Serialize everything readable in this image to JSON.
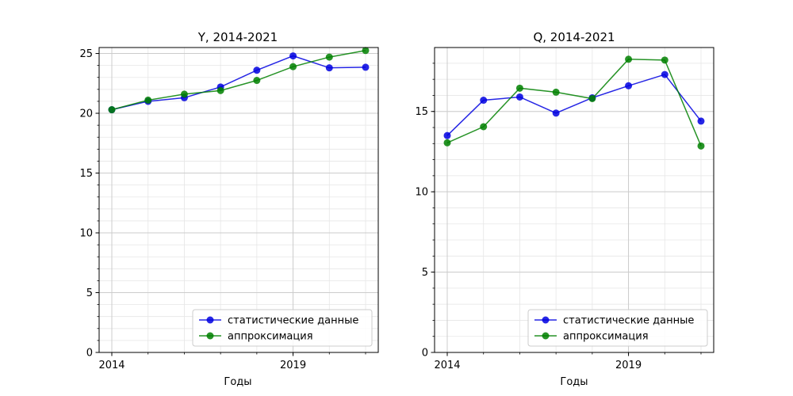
{
  "chart_data": [
    {
      "type": "line",
      "title": "Y, 2014-2021",
      "xlabel": "Годы",
      "ylabel": "",
      "x": [
        2014,
        2015,
        2016,
        2017,
        2018,
        2019,
        2020,
        2021
      ],
      "xlim": [
        2013.65,
        2021.35
      ],
      "ylim": [
        0,
        25.5
      ],
      "xticks": [
        2014,
        2019
      ],
      "yticks": [
        0,
        5,
        10,
        15,
        20,
        25
      ],
      "grid": true,
      "legend_position": "lower-right",
      "series": [
        {
          "name": "статистические данные",
          "color": "#0000e0",
          "values": [
            20.3,
            21.0,
            21.3,
            22.2,
            23.6,
            24.8,
            23.8,
            23.85
          ]
        },
        {
          "name": "аппроксимация",
          "color": "#008000",
          "values": [
            20.3,
            21.1,
            21.6,
            21.9,
            22.75,
            23.9,
            24.7,
            25.25
          ]
        }
      ]
    },
    {
      "type": "line",
      "title": "Q, 2014-2021",
      "xlabel": "Годы",
      "ylabel": "",
      "x": [
        2014,
        2015,
        2016,
        2017,
        2018,
        2019,
        2020,
        2021
      ],
      "xlim": [
        2013.65,
        2021.35
      ],
      "ylim": [
        0,
        18.98
      ],
      "xticks": [
        2014,
        2019
      ],
      "yticks": [
        0,
        5,
        10,
        15
      ],
      "grid": true,
      "legend_position": "lower-right",
      "series": [
        {
          "name": "статистические данные",
          "color": "#0000e0",
          "values": [
            13.5,
            15.7,
            15.9,
            14.9,
            15.85,
            16.6,
            17.3,
            14.4
          ]
        },
        {
          "name": "аппроксимация",
          "color": "#008000",
          "values": [
            13.05,
            14.05,
            16.45,
            16.2,
            15.8,
            18.25,
            18.2,
            12.85
          ]
        }
      ]
    }
  ]
}
